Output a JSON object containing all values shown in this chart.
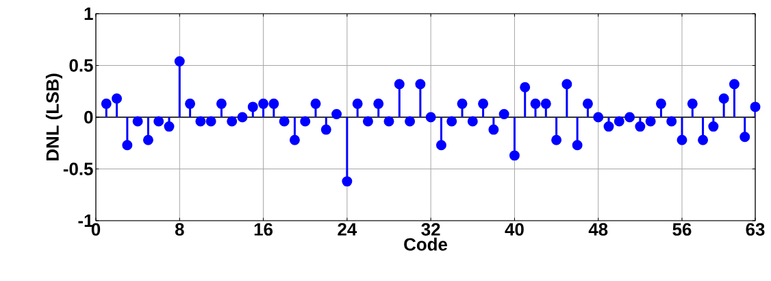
{
  "chart_data": {
    "type": "lollipop",
    "xlabel": "Code",
    "ylabel": "DNL (LSB)",
    "x": [
      1,
      2,
      3,
      4,
      5,
      6,
      7,
      8,
      9,
      10,
      11,
      12,
      13,
      14,
      15,
      16,
      17,
      18,
      19,
      20,
      21,
      22,
      23,
      24,
      25,
      26,
      27,
      28,
      29,
      30,
      31,
      32,
      33,
      34,
      35,
      36,
      37,
      38,
      39,
      40,
      41,
      42,
      43,
      44,
      45,
      46,
      47,
      48,
      49,
      50,
      51,
      52,
      53,
      54,
      55,
      56,
      57,
      58,
      59,
      60,
      61,
      62,
      63
    ],
    "values": [
      0.13,
      0.18,
      -0.27,
      -0.04,
      -0.22,
      -0.04,
      -0.09,
      0.54,
      0.13,
      -0.04,
      -0.04,
      0.13,
      -0.04,
      0,
      0.1,
      0.13,
      0.13,
      -0.04,
      -0.22,
      -0.04,
      0.13,
      -0.12,
      0.03,
      -0.62,
      0.13,
      -0.04,
      0.13,
      -0.04,
      0.32,
      -0.04,
      0.32,
      0,
      -0.27,
      -0.04,
      0.13,
      -0.04,
      0.13,
      -0.12,
      0.03,
      -0.37,
      0.29,
      0.13,
      0.13,
      -0.22,
      0.32,
      -0.27,
      0.13,
      0,
      -0.09,
      -0.04,
      0,
      -0.09,
      -0.04,
      0.13,
      -0.04,
      -0.22,
      0.13,
      -0.22,
      -0.09,
      0.18,
      0.32,
      -0.19,
      0.1
    ],
    "color": "#0000ff",
    "marker": "circle",
    "grid": true,
    "xlim": [
      0,
      63
    ],
    "xticks": [
      0,
      8,
      16,
      24,
      32,
      40,
      48,
      56,
      63
    ],
    "ylim": [
      -1,
      1
    ],
    "yticks": [
      -1,
      -0.5,
      0,
      0.5,
      1
    ],
    "ref_lines": [
      {
        "axis": "y",
        "value": 0,
        "color": "#000000"
      }
    ]
  }
}
